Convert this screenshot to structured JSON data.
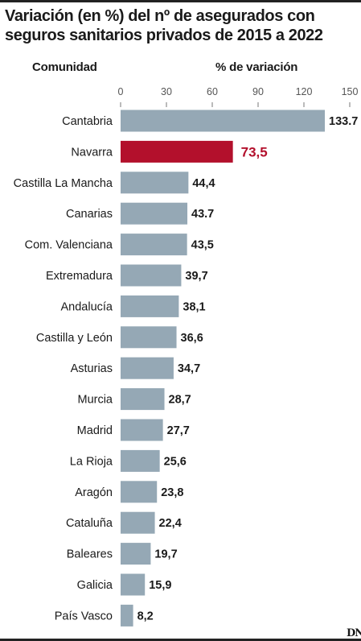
{
  "title": "Variación (en %) del nº de asegurados con seguros sanitarios privados de 2015 a 2022",
  "column_left": "Comunidad",
  "column_right": "% de variación",
  "brand_logo": "DN",
  "colors": {
    "bar": "#95a8b5",
    "highlight": "#b3102c",
    "text": "#1a1a1a"
  },
  "chart_data": {
    "type": "bar",
    "orientation": "horizontal",
    "xlim": [
      0,
      150
    ],
    "ticks": [
      "0",
      "30",
      "60",
      "90",
      "120",
      "150"
    ],
    "tick_values": [
      0,
      30,
      60,
      90,
      120,
      150
    ],
    "highlight": "Navarra",
    "categories": [
      "Cantabria",
      "Navarra",
      "Castilla La Mancha",
      "Canarias",
      "Com. Valenciana",
      "Extremadura",
      "Andalucía",
      "Castilla y León",
      "Asturias",
      "Murcia",
      "Madrid",
      "La Rioja",
      "Aragón",
      "Cataluña",
      "Baleares",
      "Galicia",
      "País Vasco"
    ],
    "values": [
      133.7,
      73.5,
      44.4,
      43.7,
      43.5,
      39.7,
      38.1,
      36.6,
      34.7,
      28.7,
      27.7,
      25.6,
      23.8,
      22.4,
      19.7,
      15.9,
      8.2
    ],
    "value_labels": [
      "133.7",
      "73,5",
      "44,4",
      "43.7",
      "43,5",
      "39,7",
      "38,1",
      "36,6",
      "34,7",
      "28,7",
      "27,7",
      "25,6",
      "23,8",
      "22,4",
      "19,7",
      "15,9",
      "8,2"
    ]
  }
}
